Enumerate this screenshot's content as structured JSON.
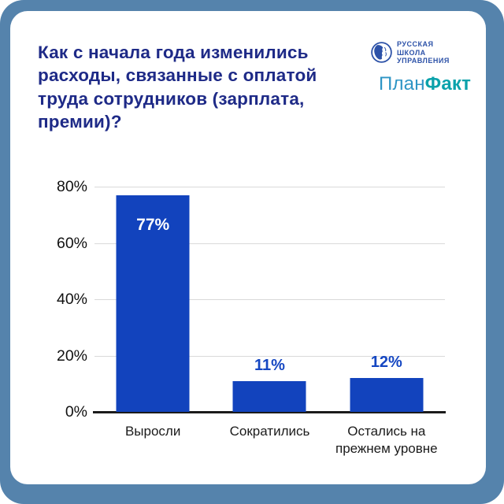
{
  "card": {
    "title": "Как с начала года изменились расходы, связанные с оплатой труда сотрудников (зарплата, премии)?",
    "title_color": "#1e2a87"
  },
  "brand": {
    "rshu_lines": [
      "РУССКАЯ",
      "ШКОЛА",
      "УПРАВЛЕНИЯ"
    ],
    "rshu_color": "#2d52a8",
    "planfakt_part1": "План",
    "planfakt_part2": "Факт",
    "planfakt_part1_color": "#2e95c5",
    "planfakt_part2_color": "#0aa2ab"
  },
  "colors": {
    "outer_frame": "#5583ac",
    "card_bg": "#ffffff",
    "bar": "#1243bd",
    "gridline": "#d9d9d9",
    "axis": "#1b1b1b",
    "value_label_inside": "#ffffff",
    "value_label_outside": "#1547c2"
  },
  "chart_data": {
    "type": "bar",
    "categories": [
      "Выросли",
      "Сократились",
      "Остались на прежнем уровне"
    ],
    "values": [
      77,
      11,
      12
    ],
    "value_labels": [
      "77%",
      "11%",
      "12%"
    ],
    "label_placement": [
      "inside",
      "outside",
      "outside"
    ],
    "ytick_values": [
      80,
      60,
      40,
      20,
      0
    ],
    "ytick_labels": [
      "80%",
      "60%",
      "40%",
      "20%",
      "0%"
    ],
    "ylim": [
      0,
      80
    ],
    "grid": true,
    "legend": "none",
    "title": "",
    "xlabel": "",
    "ylabel": ""
  }
}
